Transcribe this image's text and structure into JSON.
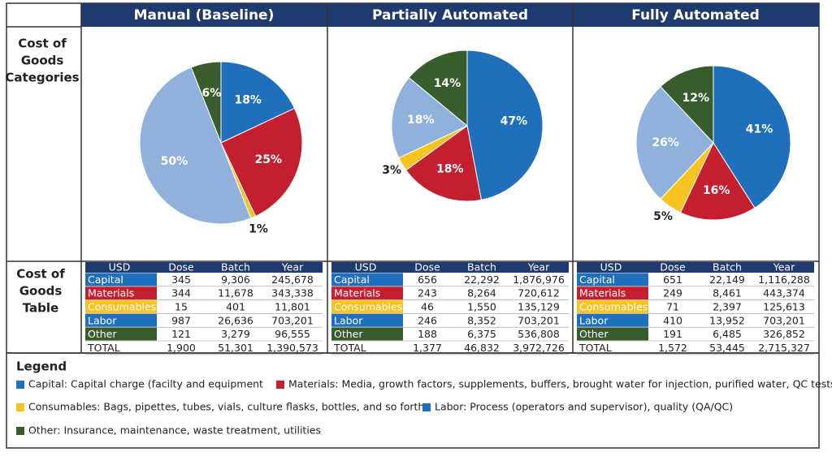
{
  "chart_data": [
    {
      "type": "pie",
      "title": "Manual (Baseline)",
      "values": [
        18,
        25,
        1,
        50,
        6
      ],
      "value_labels": [
        "18%",
        "25%",
        "1%",
        "50%",
        "6%"
      ],
      "colors": [
        "#1f6fbd",
        "#c41f2e",
        "#f6c320",
        "#8fb1dc",
        "#395c2c"
      ]
    },
    {
      "type": "pie",
      "title": "Partially Automated",
      "values": [
        47,
        18,
        3,
        18,
        14
      ],
      "value_labels": [
        "47%",
        "18%",
        "3%",
        "18%",
        "14%"
      ],
      "colors": [
        "#1f6fbd",
        "#c41f2e",
        "#f6c320",
        "#8fb1dc",
        "#395c2c"
      ]
    },
    {
      "type": "pie",
      "title": "Fully Automated",
      "values": [
        41,
        16,
        5,
        26,
        12
      ],
      "value_labels": [
        "41%",
        "16%",
        "5%",
        "26%",
        "12%"
      ],
      "colors": [
        "#1f6fbd",
        "#c41f2e",
        "#f6c320",
        "#8fb1dc",
        "#395c2c"
      ]
    }
  ],
  "pie_row_label": [
    "Cost of",
    "Goods",
    "Categories"
  ],
  "table_row_label": [
    "Cost of",
    "Goods",
    "Table"
  ],
  "tables": [
    {
      "header": [
        "USD",
        "Dose",
        "Batch",
        "Year"
      ],
      "rows": [
        [
          "Capital",
          "345",
          "9,306",
          "245,678"
        ],
        [
          "Materials",
          "344",
          "11,678",
          "343,338"
        ],
        [
          "Consumables",
          "15",
          "401",
          "11,801"
        ],
        [
          "Labor",
          "987",
          "26,636",
          "703,201"
        ],
        [
          "Other",
          "121",
          "3,279",
          "96,555"
        ],
        [
          "TOTAL",
          "1,900",
          "51,301",
          "1,390,573"
        ]
      ]
    },
    {
      "header": [
        "USD",
        "Dose",
        "Batch",
        "Year"
      ],
      "rows": [
        [
          "Capital",
          "656",
          "22,292",
          "1,876,976"
        ],
        [
          "Materials",
          "243",
          "8,264",
          "720,612"
        ],
        [
          "Consumables",
          "46",
          "1,550",
          "135,129"
        ],
        [
          "Labor",
          "246",
          "8,352",
          "703,201"
        ],
        [
          "Other",
          "188",
          "6,375",
          "536,808"
        ],
        [
          "TOTAL",
          "1,377",
          "46,832",
          "3,972,726"
        ]
      ]
    },
    {
      "header": [
        "USD",
        "Dose",
        "Batch",
        "Year"
      ],
      "rows": [
        [
          "Capital",
          "651",
          "22,149",
          "1,116,288"
        ],
        [
          "Materials",
          "249",
          "8,461",
          "443,374"
        ],
        [
          "Consumables",
          "71",
          "2,397",
          "125,613"
        ],
        [
          "Labor",
          "410",
          "13,952",
          "703,201"
        ],
        [
          "Other",
          "191",
          "6,485",
          "326,852"
        ],
        [
          "TOTAL",
          "1,572",
          "53,445",
          "2,715,327"
        ]
      ]
    }
  ],
  "legend": {
    "title": "Legend",
    "items": [
      {
        "color": "#1f6fbd",
        "text": "Capital: Capital charge (facilty and equipment"
      },
      {
        "color": "#c41f2e",
        "text": "Materials: Media, growth factors, supplements, buffers, brought water for injection, purified water, QC tests"
      },
      {
        "color": "#f6c320",
        "text": "Consumables: Bags, pipettes, tubes, vials, culture flasks, bottles, and so forth"
      },
      {
        "color": "#1f6fbd",
        "text": "Labor: Process (operators and supervisor), quality (QA/QC)"
      },
      {
        "color": "#395c2c",
        "text": "Other: Insurance, maintenance, waste treatment, utilities"
      }
    ]
  }
}
